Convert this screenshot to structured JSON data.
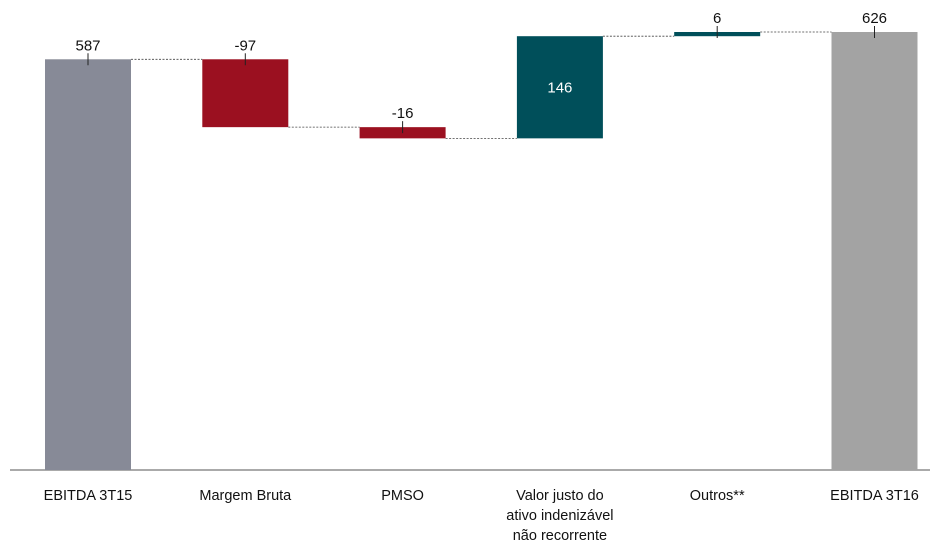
{
  "chart_data": {
    "type": "waterfall",
    "categories": [
      "EBITDA 3T15",
      "Margem Bruta",
      "PMSO",
      "Valor justo do\nativo indenizável\nnão recorrente",
      "Outros**",
      "EBITDA 3T16"
    ],
    "values": [
      587,
      -97,
      -16,
      146,
      6,
      626
    ],
    "measure": [
      "absolute",
      "relative",
      "relative",
      "relative",
      "relative",
      "absolute"
    ],
    "colors": [
      "#878a97",
      "#9b1020",
      "#9b1020",
      "#004f5a",
      "#004f5a",
      "#a3a3a3"
    ]
  }
}
